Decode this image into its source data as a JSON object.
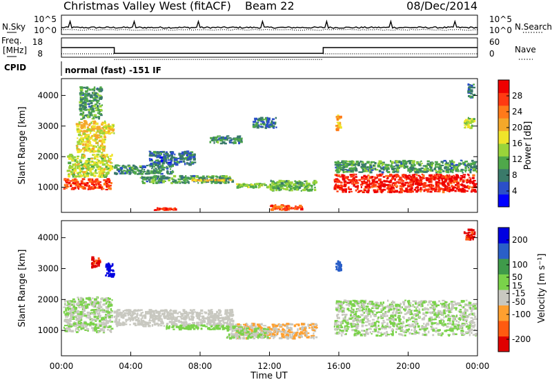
{
  "header": {
    "station": "Christmas Valley West (fitACF)",
    "beam": "Beam 22",
    "date": "08/Dec/2014"
  },
  "chart_data": [
    {
      "type": "line",
      "panel": "noise",
      "left_label": "N.Sky",
      "right_label": "N.Search",
      "left_ticks": [
        "10^5",
        "10^0"
      ],
      "right_ticks": [
        "10^5",
        "10^0"
      ],
      "series": [
        {
          "name": "N.Sky",
          "style": "solid"
        },
        {
          "name": "N.Search",
          "style": "dotted"
        }
      ]
    },
    {
      "type": "line",
      "panel": "frequency",
      "left_label_lines": [
        "Freq.",
        "[MHz]"
      ],
      "right_label": "Nave",
      "left_ticks": [
        18,
        8
      ],
      "right_ticks": [
        60,
        0
      ],
      "ylim": [
        8,
        18
      ],
      "freq_steps": [
        {
          "t0": 0.0,
          "t1": 3.05,
          "mhz": 13.0
        },
        {
          "t0": 3.05,
          "t1": 15.1,
          "mhz": 10.0
        },
        {
          "t0": 15.1,
          "t1": 24.0,
          "mhz": 13.0
        }
      ]
    },
    {
      "type": "table",
      "panel": "cpid",
      "label": "CPID",
      "text": "normal (fast) -151 IF"
    },
    {
      "type": "heatmap",
      "panel": "power",
      "ylabel": "Slant Range [km]",
      "ylim": [
        180,
        4550
      ],
      "yticks": [
        1000,
        2000,
        3000,
        4000
      ],
      "xlim": [
        0,
        24
      ],
      "colorbar_label": "Power [dB]",
      "colorbar_ticks": [
        28,
        24,
        20,
        16,
        12,
        8,
        4
      ],
      "colorbar_range": [
        0,
        32
      ],
      "colors": [
        "#0000ff",
        "#2b4fc9",
        "#3a7a6a",
        "#4fa84a",
        "#9ad43a",
        "#f0e42a",
        "#f4a82a",
        "#ff7a1a",
        "#ff3a12",
        "#ee0000"
      ],
      "regions": [
        {
          "t0": 0.1,
          "t1": 3.0,
          "r0": 900,
          "r1": 1300,
          "db": 27
        },
        {
          "t0": 0.3,
          "t1": 3.0,
          "r0": 1300,
          "r1": 2100,
          "db": 16
        },
        {
          "t0": 0.8,
          "t1": 2.6,
          "r0": 2100,
          "r1": 3200,
          "db": 18
        },
        {
          "t0": 1.0,
          "t1": 2.4,
          "r0": 3200,
          "r1": 4300,
          "db": 10
        },
        {
          "t0": 2.5,
          "t1": 3.1,
          "r0": 2700,
          "r1": 3100,
          "db": 18
        },
        {
          "t0": 3.0,
          "t1": 6.5,
          "r0": 1400,
          "r1": 1750,
          "db": 9
        },
        {
          "t0": 4.5,
          "t1": 10.0,
          "r0": 1100,
          "r1": 1400,
          "db": 10
        },
        {
          "t0": 7.5,
          "t1": 10.0,
          "r0": 1180,
          "r1": 1280,
          "db": 20
        },
        {
          "t0": 10.0,
          "t1": 12.5,
          "r0": 950,
          "r1": 1150,
          "db": 14
        },
        {
          "t0": 12.0,
          "t1": 14.8,
          "r0": 850,
          "r1": 1250,
          "db": 12
        },
        {
          "t0": 5.0,
          "t1": 7.8,
          "r0": 1700,
          "r1": 2200,
          "db": 7
        },
        {
          "t0": 8.5,
          "t1": 10.5,
          "r0": 2400,
          "r1": 2700,
          "db": 9
        },
        {
          "t0": 11.0,
          "t1": 12.5,
          "r0": 2900,
          "r1": 3300,
          "db": 8
        },
        {
          "t0": 5.3,
          "t1": 6.7,
          "r0": 220,
          "r1": 350,
          "db": 27
        },
        {
          "t0": 12.0,
          "t1": 14.0,
          "r0": 220,
          "r1": 450,
          "db": 26
        },
        {
          "t0": 15.7,
          "t1": 24.0,
          "r0": 800,
          "r1": 1450,
          "db": 29
        },
        {
          "t0": 15.7,
          "t1": 24.0,
          "r0": 1450,
          "r1": 1900,
          "db": 10
        },
        {
          "t0": 15.8,
          "t1": 16.2,
          "r0": 2800,
          "r1": 3400,
          "db": 20
        },
        {
          "t0": 23.2,
          "t1": 23.9,
          "r0": 2900,
          "r1": 3300,
          "db": 15
        },
        {
          "t0": 23.4,
          "t1": 23.9,
          "r0": 3900,
          "r1": 4400,
          "db": 8
        }
      ]
    },
    {
      "type": "heatmap",
      "panel": "velocity",
      "ylabel": "Slant Range [km]",
      "ylim": [
        180,
        4550
      ],
      "yticks": [
        1000,
        2000,
        3000,
        4000
      ],
      "xlim": [
        0,
        24
      ],
      "xticks": [
        "00:00",
        "04:00",
        "08:00",
        "12:00",
        "16:00",
        "20:00",
        "00:00"
      ],
      "xlabel": "Time UT",
      "colorbar_label": "Velocity [m s⁻¹]",
      "colorbar_ticks": [
        200,
        100,
        50,
        15,
        -15,
        -50,
        -100,
        -200
      ],
      "colorbar_range": [
        -250,
        250
      ],
      "colors": [
        "#e00000",
        "#ff5a10",
        "#ffa030",
        "#c8c8c0",
        "#7ad24a",
        "#3f9a4a",
        "#2a5fc8",
        "#0000e0"
      ],
      "regions": [
        {
          "t0": 0.1,
          "t1": 3.0,
          "r0": 900,
          "r1": 2100,
          "vel": 0
        },
        {
          "t0": 3.0,
          "t1": 10.0,
          "r0": 1100,
          "r1": 1700,
          "vel": -40
        },
        {
          "t0": 6.0,
          "t1": 10.5,
          "r0": 1000,
          "r1": 1200,
          "vel": 40
        },
        {
          "t0": 10.0,
          "t1": 14.8,
          "r0": 700,
          "r1": 1250,
          "vel": -60
        },
        {
          "t0": 9.5,
          "t1": 12.0,
          "r0": 700,
          "r1": 1100,
          "vel": 0
        },
        {
          "t0": 2.5,
          "t1": 3.1,
          "r0": 2700,
          "r1": 3200,
          "vel": 220
        },
        {
          "t0": 1.7,
          "t1": 2.3,
          "r0": 3000,
          "r1": 3400,
          "vel": -200
        },
        {
          "t0": 15.7,
          "t1": 24.0,
          "r0": 800,
          "r1": 2000,
          "vel": 0
        },
        {
          "t0": 15.8,
          "t1": 16.2,
          "r0": 2900,
          "r1": 3300,
          "vel": 150
        },
        {
          "t0": 23.2,
          "t1": 23.9,
          "r0": 3900,
          "r1": 4300,
          "vel": -200
        }
      ]
    }
  ]
}
